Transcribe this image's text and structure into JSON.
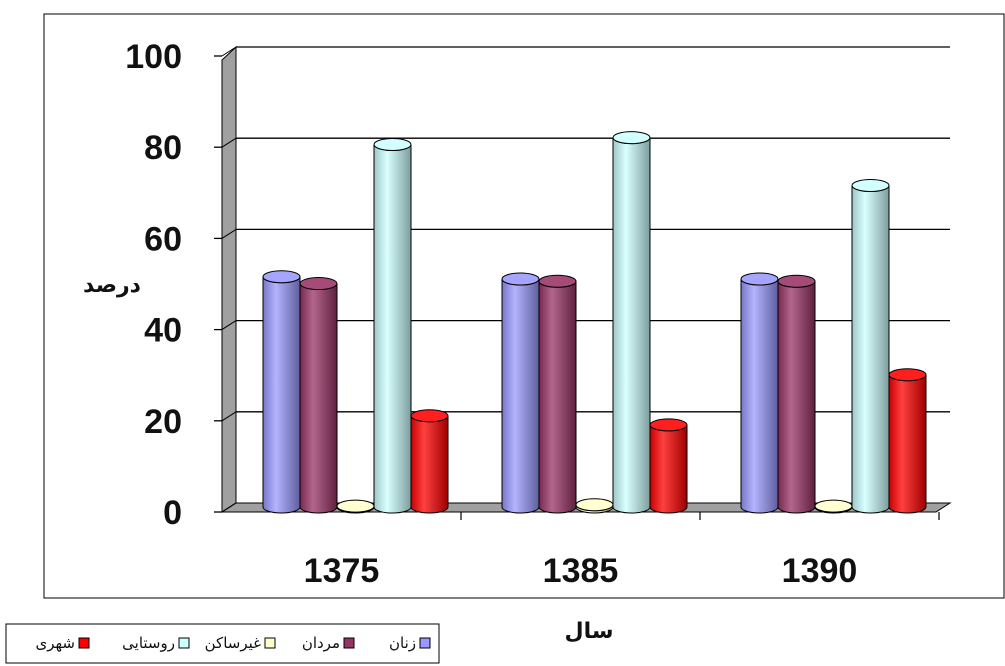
{
  "chart_data": {
    "type": "bar",
    "style": "3d-cylinder",
    "categories": [
      "1375",
      "1385",
      "1390"
    ],
    "series": [
      {
        "name": "زنان",
        "color": "#9999ff",
        "values": [
          50.5,
          50,
          50
        ]
      },
      {
        "name": "مردان",
        "color": "#993366",
        "values": [
          49,
          49.5,
          49.5
        ]
      },
      {
        "name": "غیرساکن",
        "color": "#ffffcc",
        "values": [
          0.2,
          0.5,
          0.2
        ]
      },
      {
        "name": "روستایی",
        "color": "#ccffff",
        "values": [
          79.5,
          81,
          70.5
        ]
      },
      {
        "name": "شهری",
        "color": "#ff0000",
        "values": [
          20,
          18,
          29
        ]
      }
    ],
    "xlabel": "سال",
    "ylabel": "درصد",
    "ylim": [
      0,
      100
    ],
    "yticks": [
      "0",
      "20",
      "40",
      "60",
      "80",
      "100"
    ],
    "grid": true,
    "legend_position": "bottom-left"
  }
}
